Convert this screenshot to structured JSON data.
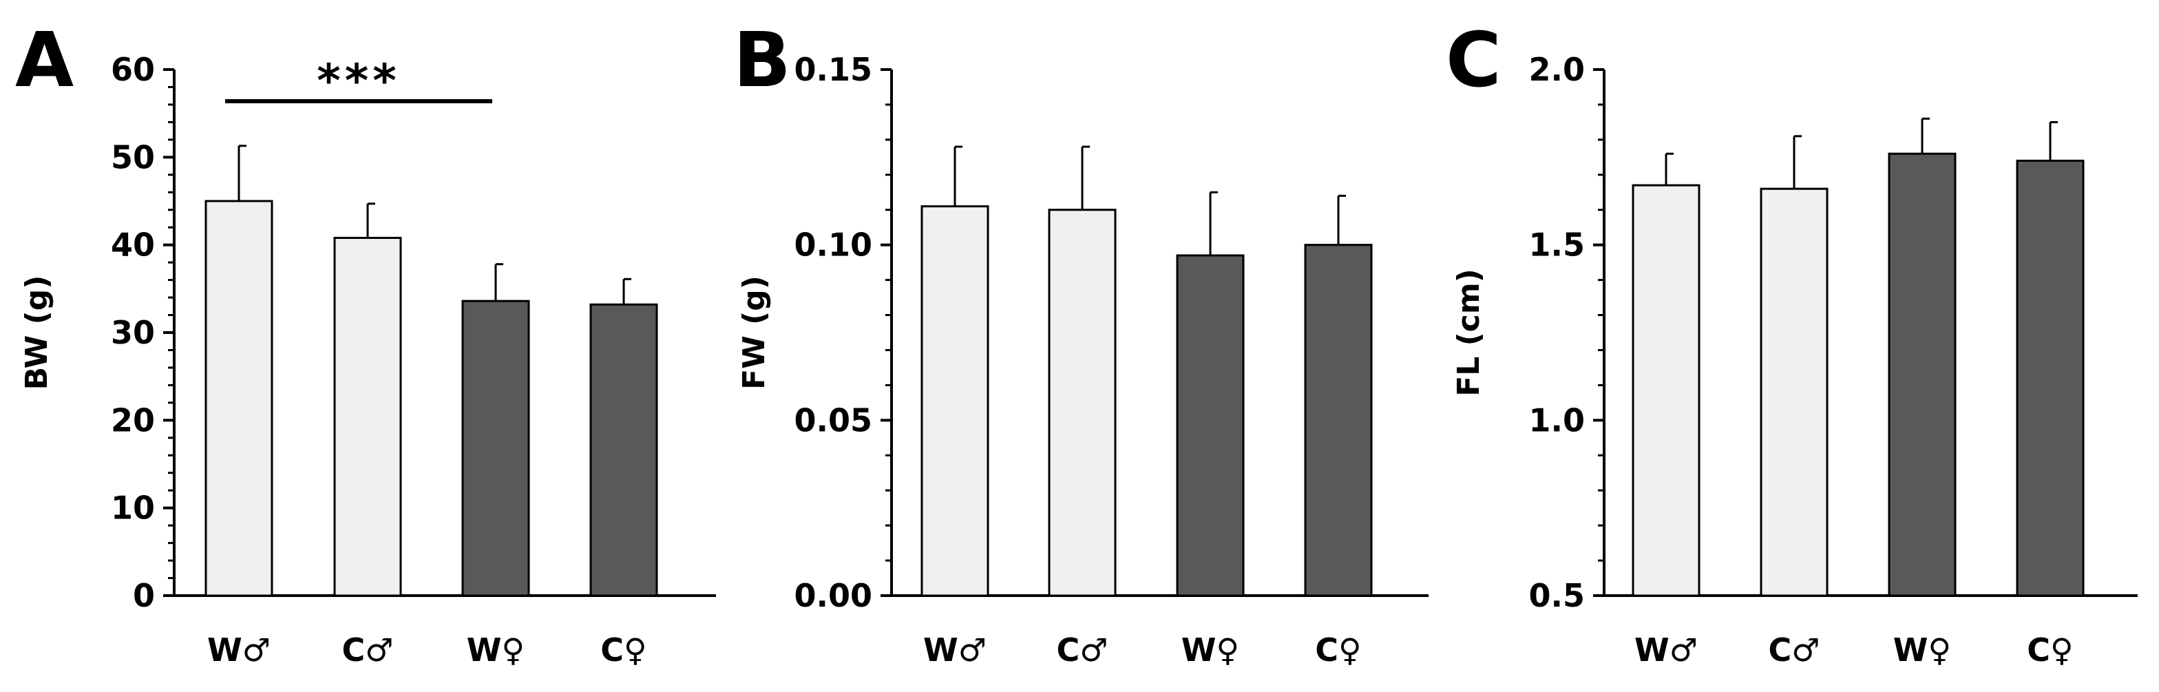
{
  "colors": {
    "male": "#f0f0f0",
    "female": "#595959",
    "stroke": "#000000"
  },
  "chart_data": [
    {
      "type": "bar",
      "panel": "A",
      "ylabel": "BW (g)",
      "xlabel": "",
      "categories": [
        "W♂",
        "C♂",
        "W♀",
        "C♀"
      ],
      "values": [
        45,
        40.8,
        33.6,
        33.2
      ],
      "errors": [
        6.3,
        3.9,
        4.2,
        2.9
      ],
      "groups": [
        "male",
        "male",
        "female",
        "female"
      ],
      "ylim": [
        0,
        60
      ],
      "yticks": [
        "0",
        "10",
        "20",
        "30",
        "40",
        "50",
        "60"
      ],
      "minor_step": 2,
      "significance": {
        "text": "***",
        "from": 0,
        "to": 2
      }
    },
    {
      "type": "bar",
      "panel": "B",
      "ylabel": "FW (g)",
      "xlabel": "",
      "categories": [
        "W♂",
        "C♂",
        "W♀",
        "C♀"
      ],
      "values": [
        0.111,
        0.11,
        0.097,
        0.1
      ],
      "errors": [
        0.017,
        0.018,
        0.018,
        0.014
      ],
      "groups": [
        "male",
        "male",
        "female",
        "female"
      ],
      "ylim": [
        0,
        0.15
      ],
      "yticks": [
        "0.00",
        "0.05",
        "0.10",
        "0.15"
      ],
      "minor_step": 0.01
    },
    {
      "type": "bar",
      "panel": "C",
      "ylabel": "FL (cm)",
      "xlabel": "",
      "categories": [
        "W♂",
        "C♂",
        "W♀",
        "C♀"
      ],
      "values": [
        1.67,
        1.66,
        1.76,
        1.74
      ],
      "errors": [
        0.09,
        0.15,
        0.1,
        0.11
      ],
      "groups": [
        "male",
        "male",
        "female",
        "female"
      ],
      "ylim": [
        0.5,
        2.0
      ],
      "yticks": [
        "0.5",
        "1.0",
        "1.5",
        "2.0"
      ],
      "minor_step": 0.1
    }
  ]
}
